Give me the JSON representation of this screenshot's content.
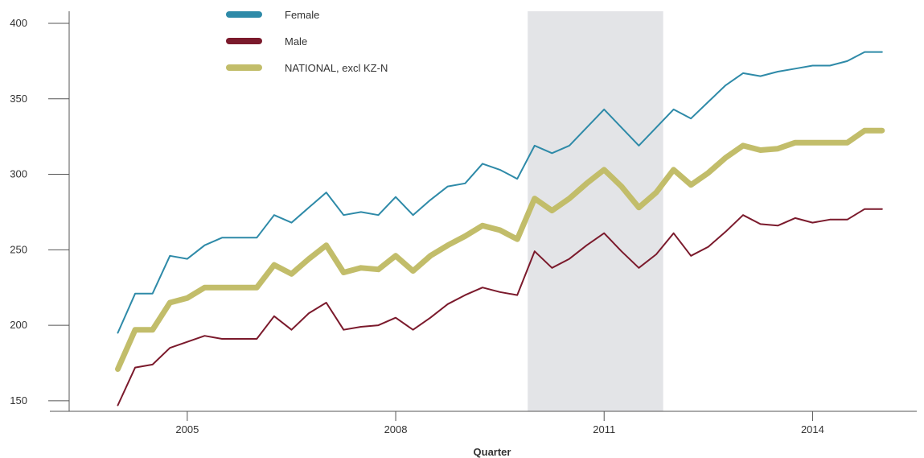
{
  "chart_data": {
    "type": "line",
    "xlabel": "Quarter",
    "ylabel": "",
    "xlim": [
      2003.3,
      2015.5
    ],
    "ylim": [
      143,
      408
    ],
    "x_ticks": [
      2005,
      2008,
      2011,
      2014
    ],
    "x_tick_labels": [
      "2005",
      "2008",
      "2011",
      "2014"
    ],
    "y_ticks": [
      150,
      200,
      250,
      300,
      350,
      400
    ],
    "y_tick_labels": [
      "150",
      "200",
      "250",
      "300",
      "350",
      "400"
    ],
    "shaded_region": [
      2009.9,
      2011.85
    ],
    "legend_position": "top-center",
    "x": [
      2004.0,
      2004.25,
      2004.5,
      2004.75,
      2005.0,
      2005.25,
      2005.5,
      2005.75,
      2006.0,
      2006.25,
      2006.5,
      2006.75,
      2007.0,
      2007.25,
      2007.5,
      2007.75,
      2008.0,
      2008.25,
      2008.5,
      2008.75,
      2009.0,
      2009.25,
      2009.5,
      2009.75,
      2010.0,
      2010.25,
      2010.5,
      2010.75,
      2011.0,
      2011.25,
      2011.5,
      2011.75,
      2012.0,
      2012.25,
      2012.5,
      2012.75,
      2013.0,
      2013.25,
      2013.5,
      2013.75,
      2014.0,
      2014.25,
      2014.5,
      2014.75,
      2015.0
    ],
    "series": [
      {
        "name": "Female",
        "color": "#2e8aa8",
        "values": [
          195,
          221,
          221,
          246,
          244,
          253,
          258,
          258,
          258,
          273,
          268,
          278,
          288,
          273,
          275,
          273,
          285,
          273,
          283,
          292,
          294,
          307,
          303,
          297,
          319,
          314,
          319,
          331,
          343,
          331,
          319,
          331,
          343,
          337,
          348,
          359,
          367,
          365,
          368,
          370,
          372,
          372,
          375,
          381,
          381
        ]
      },
      {
        "name": "Male",
        "color": "#7b1a2c",
        "values": [
          147,
          172,
          174,
          185,
          189,
          193,
          191,
          191,
          191,
          206,
          197,
          208,
          215,
          197,
          199,
          200,
          205,
          197,
          205,
          214,
          220,
          225,
          222,
          220,
          249,
          238,
          244,
          253,
          261,
          249,
          238,
          247,
          261,
          246,
          252,
          262,
          273,
          267,
          266,
          271,
          268,
          270,
          270,
          277,
          277
        ]
      },
      {
        "name": "NATIONAL, excl KZ-N",
        "color": "#c2bd6a",
        "values": [
          171,
          197,
          197,
          215,
          218,
          225,
          225,
          225,
          225,
          240,
          234,
          244,
          253,
          235,
          238,
          237,
          246,
          236,
          246,
          253,
          259,
          266,
          263,
          257,
          284,
          276,
          284,
          294,
          303,
          292,
          278,
          288,
          303,
          293,
          301,
          311,
          319,
          316,
          317,
          321,
          321,
          321,
          321,
          329,
          329
        ]
      }
    ]
  }
}
